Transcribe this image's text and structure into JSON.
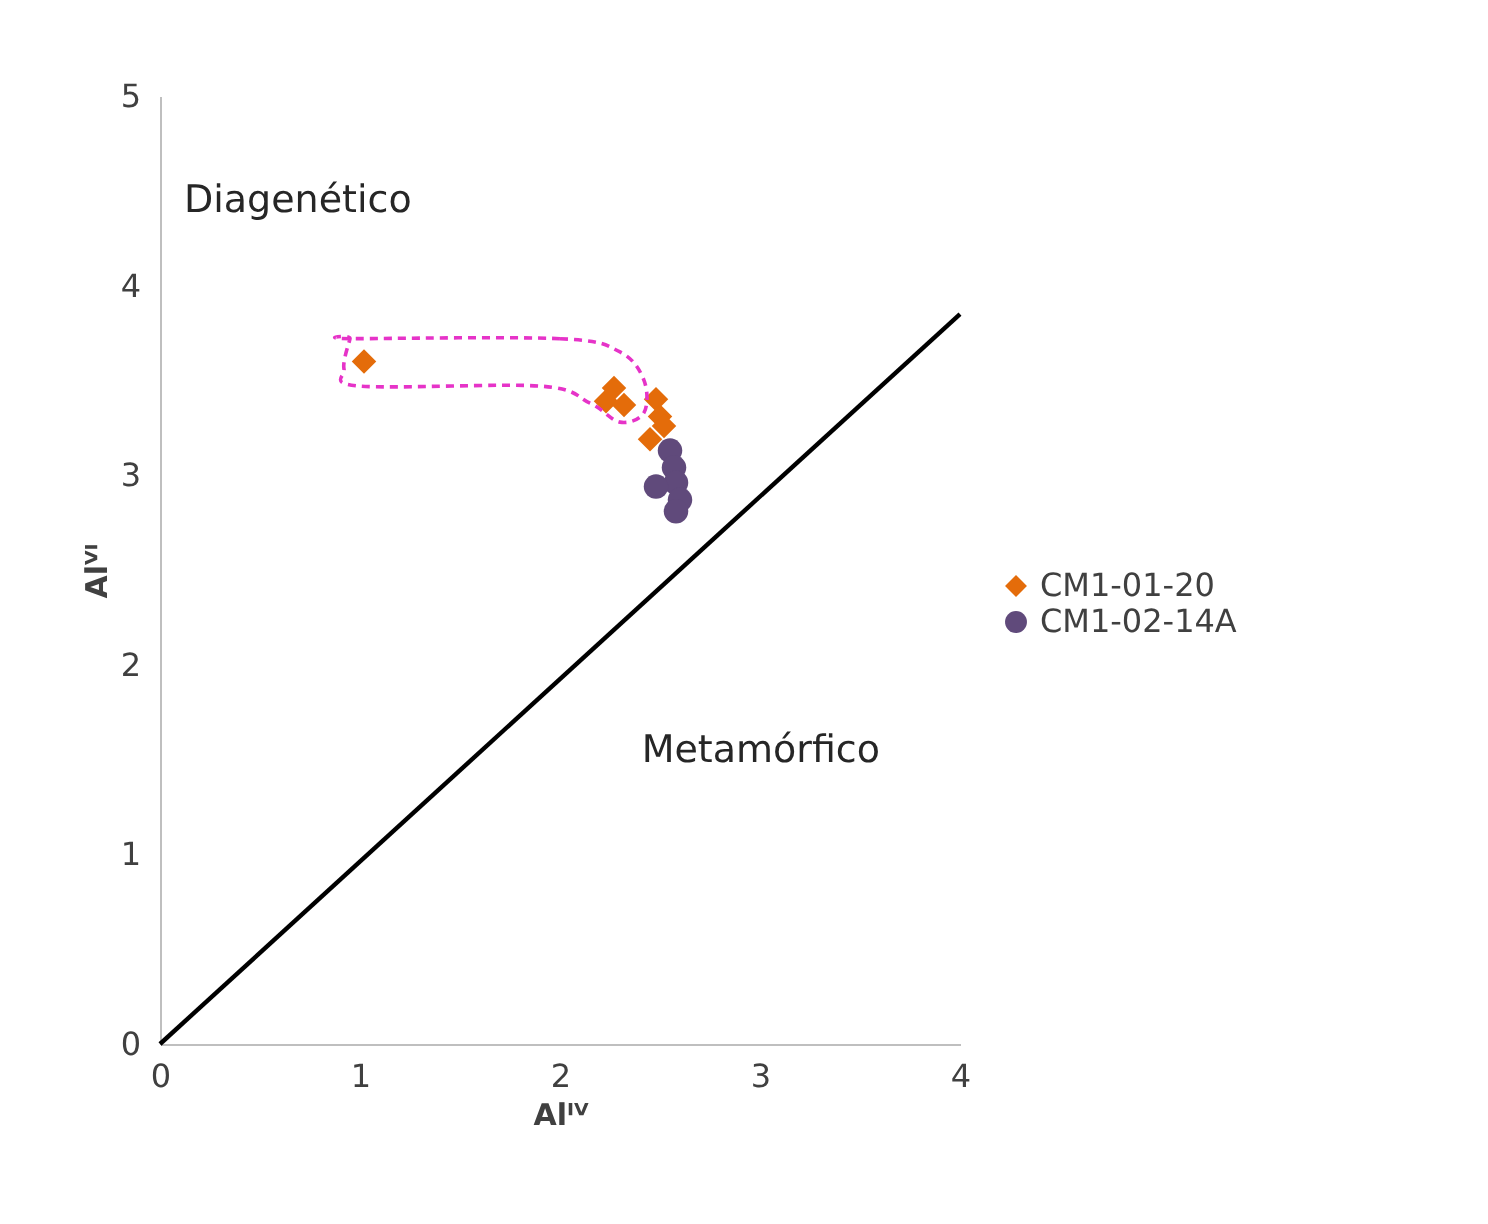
{
  "chart_data": {
    "type": "scatter",
    "xlabel": "Alᴵⱽ",
    "ylabel": "Alⱽᴵ",
    "xlim": [
      0,
      4
    ],
    "ylim": [
      0,
      5
    ],
    "xticks": [
      0,
      1,
      2,
      3,
      4
    ],
    "yticks": [
      0,
      1,
      2,
      3,
      4,
      5
    ],
    "grid": false,
    "legend": "right",
    "annotations": [
      "Diagenético",
      "Metamórfico"
    ],
    "series": [
      {
        "name": "CM1-01-20",
        "color": "#e46c0a",
        "marker": "diamond",
        "x": [
          1.02,
          2.27,
          2.23,
          2.32,
          2.48,
          2.5,
          2.52,
          2.45
        ],
        "values": [
          3.6,
          3.46,
          3.39,
          3.37,
          3.4,
          3.31,
          3.26,
          3.19
        ]
      },
      {
        "name": "CM1-02-14A",
        "color": "#604a7b",
        "marker": "circle",
        "x": [
          2.55,
          2.57,
          2.58,
          2.48,
          2.6,
          2.58
        ],
        "values": [
          3.13,
          3.04,
          2.96,
          2.94,
          2.87,
          2.81
        ]
      },
      {
        "type": "line",
        "color": "#000000",
        "x": [
          0,
          4
        ],
        "values": [
          0,
          3.85
        ]
      }
    ]
  }
}
